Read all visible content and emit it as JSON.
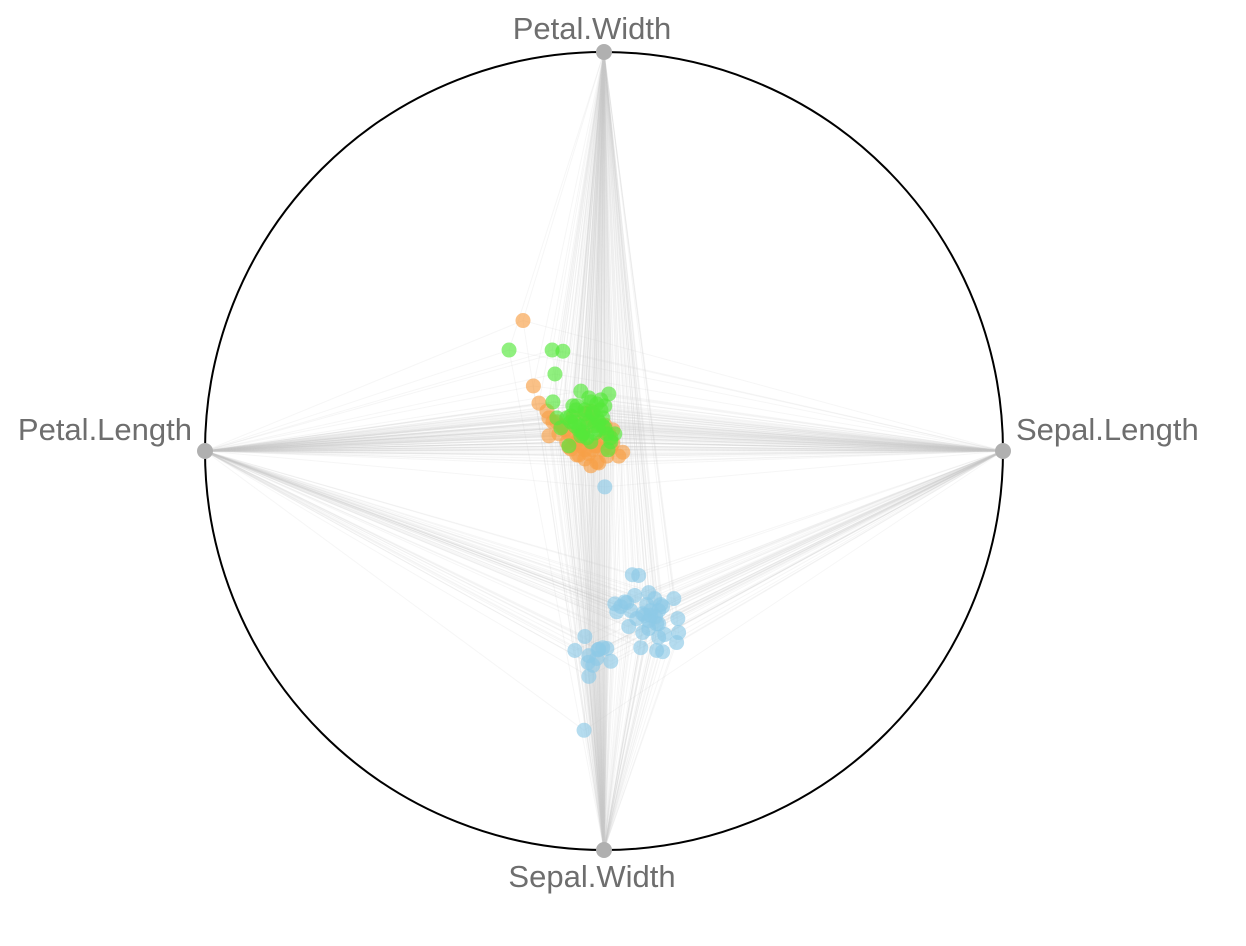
{
  "chart_data": {
    "type": "scatter",
    "subtype": "radviz",
    "title": "",
    "anchors": [
      "Sepal.Length",
      "Petal.Width",
      "Petal.Length",
      "Sepal.Width"
    ],
    "anchor_angles_deg": [
      0,
      90,
      180,
      270
    ],
    "grid": false,
    "legend": "none",
    "colors": {
      "circle": "#000000",
      "anchor": "#b0b0b0",
      "label": "#6e6e6e",
      "link": "#c8c8c8"
    },
    "series": [
      {
        "color": "#8ecae6",
        "x": [
          0.002,
          0.071,
          0.087,
          0.112,
          0.127,
          0.175,
          0.142,
          0.137,
          0.117,
          0.097,
          0.129,
          0.185,
          0.052,
          0.077,
          0.042,
          0.147,
          0.187,
          0.137,
          0.132,
          0.092,
          0.067,
          0.032,
          0.007,
          -0.003,
          0.017,
          -0.028,
          -0.073,
          -0.038,
          -0.018,
          -0.048,
          -0.013,
          0.107,
          0.117,
          0.137,
          0.182,
          0.147,
          0.097,
          0.112,
          0.112,
          0.082,
          0.062,
          0.057,
          0.102,
          0.027,
          0.132,
          0.152,
          -0.015,
          -0.04,
          -0.038,
          -0.05
        ],
        "y": [
          -0.09,
          -0.31,
          -0.312,
          -0.355,
          -0.37,
          -0.37,
          -0.385,
          -0.4,
          -0.4,
          -0.408,
          -0.415,
          -0.42,
          -0.378,
          -0.362,
          -0.39,
          -0.39,
          -0.455,
          -0.467,
          -0.5,
          -0.493,
          -0.4,
          -0.403,
          -0.495,
          -0.493,
          -0.527,
          -0.537,
          -0.5,
          -0.513,
          -0.52,
          -0.465,
          -0.497,
          -0.385,
          -0.412,
          -0.433,
          -0.48,
          -0.503,
          -0.455,
          -0.445,
          -0.425,
          -0.42,
          -0.44,
          -0.38,
          -0.412,
          -0.383,
          -0.433,
          -0.46,
          -0.498,
          -0.53,
          -0.565,
          -0.7
        ]
      },
      {
        "color": "#f7a046",
        "x": [
          -0.203,
          -0.177,
          -0.163,
          -0.143,
          -0.138,
          -0.118,
          -0.108,
          -0.098,
          -0.088,
          -0.078,
          -0.068,
          -0.058,
          -0.048,
          -0.038,
          -0.028,
          -0.018,
          -0.008,
          0.002,
          0.012,
          0.022,
          -0.128,
          -0.113,
          -0.088,
          -0.068,
          -0.048,
          -0.033,
          -0.013,
          0.007,
          0.037,
          0.047,
          -0.138,
          -0.103,
          -0.078,
          -0.058,
          -0.053,
          -0.023,
          -0.003,
          0.017,
          -0.093,
          -0.083,
          -0.063,
          -0.043,
          -0.028,
          -0.008,
          -0.033,
          -0.048,
          0.002,
          0.022,
          -0.063,
          -0.018
        ],
        "y": [
          0.327,
          0.163,
          0.12,
          0.1,
          0.083,
          0.073,
          0.063,
          0.053,
          0.043,
          0.033,
          0.023,
          0.013,
          0.003,
          -0.007,
          0.003,
          0.013,
          0.023,
          0.033,
          0.043,
          0.053,
          0.073,
          0.043,
          0.01,
          -0.01,
          -0.02,
          -0.037,
          -0.03,
          -0.013,
          -0.013,
          -0.003,
          0.038,
          0.06,
          0.085,
          0.048,
          0.023,
          0.013,
          0.003,
          0.008,
          0.022,
          0.005,
          0.03,
          0.06,
          0.077,
          0.063,
          0.1,
          0.095,
          0.065,
          0.02,
          -0.01,
          -0.028
        ]
      },
      {
        "color": "#55e83a",
        "x": [
          -0.238,
          -0.13,
          -0.103,
          -0.123,
          -0.128,
          -0.118,
          -0.108,
          -0.093,
          -0.083,
          -0.073,
          -0.063,
          -0.053,
          -0.043,
          -0.033,
          -0.023,
          -0.013,
          -0.003,
          0.007,
          0.017,
          0.027,
          -0.058,
          -0.068,
          -0.038,
          -0.048,
          -0.028,
          -0.018,
          -0.008,
          0.002,
          0.012,
          -0.088,
          -0.078,
          -0.053,
          -0.033,
          -0.043,
          -0.063,
          -0.023,
          -0.013,
          -0.003,
          -0.048,
          -0.038,
          -0.028,
          -0.018,
          -0.008,
          0.002,
          -0.073,
          -0.083,
          -0.058,
          0.017,
          0.01,
          -0.07
        ],
        "y": [
          0.253,
          0.253,
          0.25,
          0.193,
          0.123,
          0.083,
          0.058,
          0.083,
          0.073,
          0.063,
          0.053,
          0.043,
          0.033,
          0.023,
          0.063,
          0.073,
          0.063,
          0.043,
          0.033,
          0.043,
          0.15,
          0.113,
          0.133,
          0.103,
          0.093,
          0.083,
          0.103,
          0.113,
          0.143,
          0.013,
          0.113,
          0.048,
          0.123,
          0.078,
          0.063,
          0.045,
          0.053,
          0.083,
          0.093,
          0.073,
          0.098,
          0.118,
          0.128,
          0.058,
          0.073,
          0.088,
          0.038,
          0.023,
          0.003,
          0.103
        ]
      }
    ]
  }
}
